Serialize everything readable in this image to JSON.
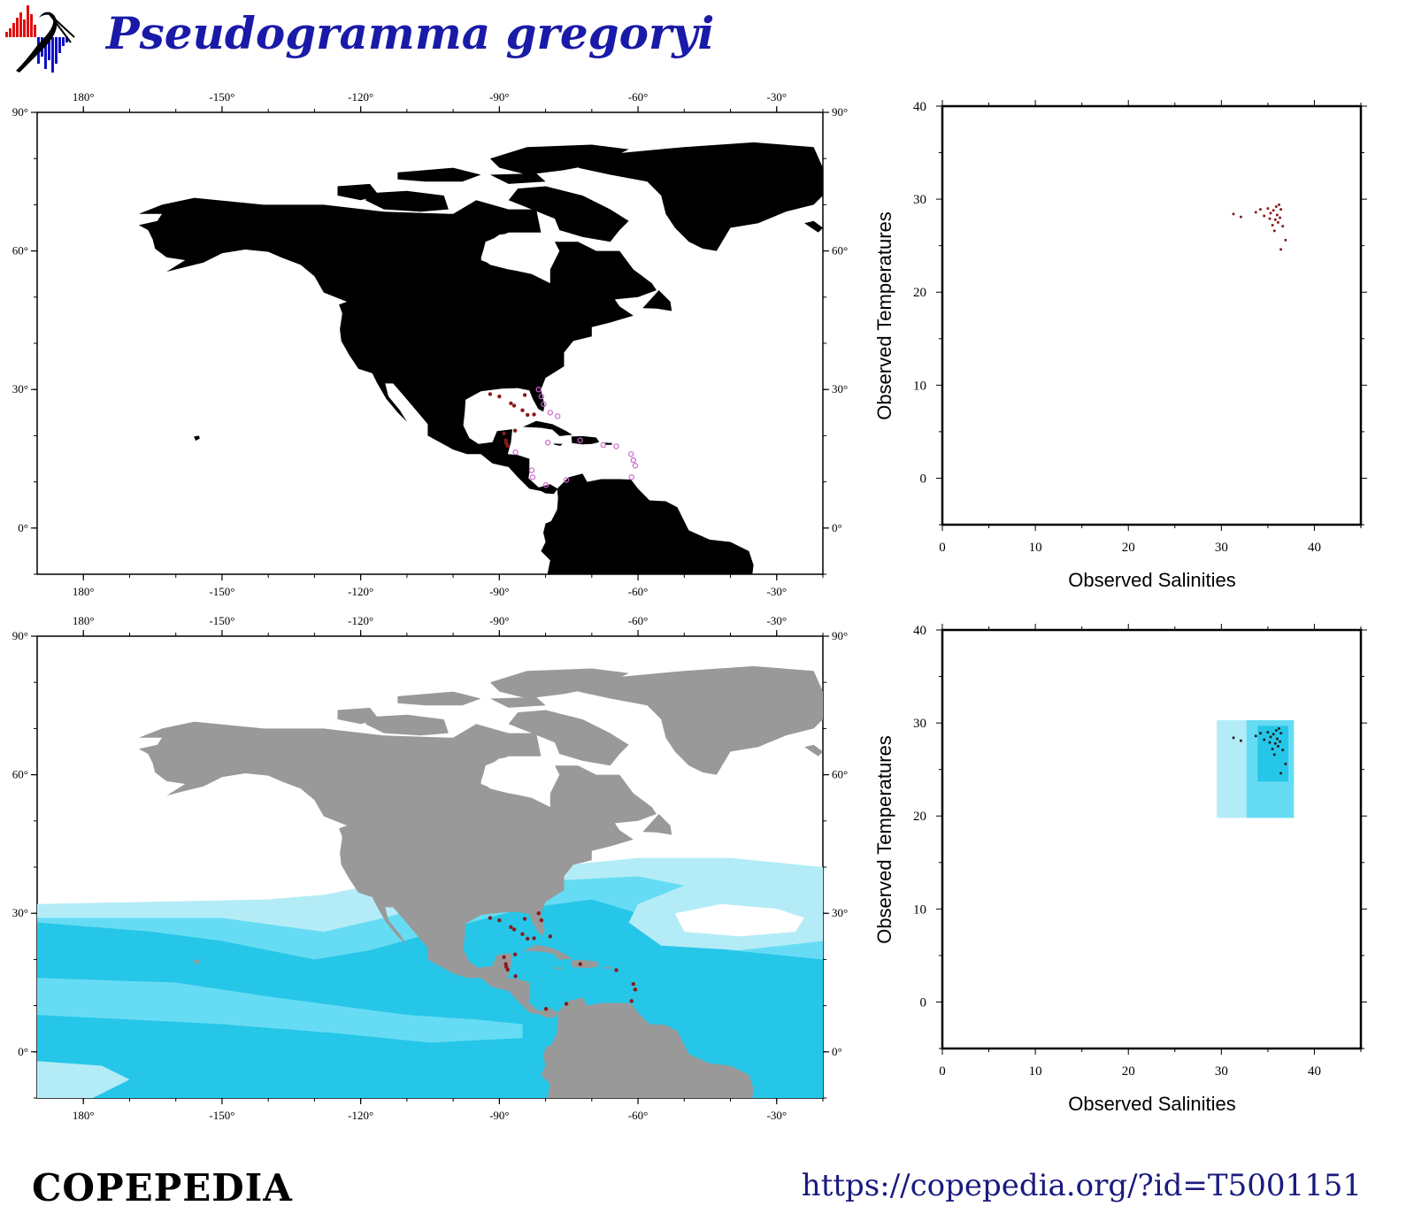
{
  "header": {
    "title": "Pseudogramma gregoryi",
    "logo_icon": "copepedia-logo-icon"
  },
  "footer": {
    "brand": "COPEPEDIA",
    "url": "https://copepedia.org/?id=T5001151"
  },
  "colors": {
    "land_black": "#000000",
    "land_gray": "#999999",
    "ocean_light": "#b3ecf7",
    "ocean_mid": "#66dcf4",
    "ocean_dark": "#26c6e8",
    "record_dark": "#8b1a1a",
    "record_open": "#cc66cc",
    "title_blue": "#1a1aa8"
  },
  "chart_data": [
    {
      "type": "map",
      "panel": "occurrence-map",
      "x_ticks": [
        "180°",
        "-150°",
        "-120°",
        "-90°",
        "-60°",
        "-30°"
      ],
      "y_ticks": [
        "90°",
        "60°",
        "30°",
        "0°"
      ],
      "x_tick_values": [
        180,
        -150,
        -120,
        -90,
        -60,
        -30
      ],
      "y_tick_values": [
        90,
        60,
        30,
        0
      ],
      "xlim": [
        -190,
        -20
      ],
      "ylim": [
        -10,
        90
      ],
      "land_color": "black",
      "records_filled": [
        [
          -89.0,
          20.5
        ],
        [
          -88.6,
          19.0
        ],
        [
          -88.2,
          17.8
        ],
        [
          -88.5,
          18.4
        ],
        [
          -86.6,
          21.1
        ],
        [
          -87.5,
          27.0
        ],
        [
          -86.8,
          26.5
        ],
        [
          -84.5,
          28.8
        ],
        [
          -92.0,
          29.0
        ],
        [
          -90.0,
          28.5
        ],
        [
          -85.0,
          25.5
        ],
        [
          -83.9,
          24.5
        ],
        [
          -82.5,
          24.6
        ]
      ],
      "records_open": [
        [
          -81.5,
          30.0
        ],
        [
          -80.9,
          28.5
        ],
        [
          -80.4,
          26.8
        ],
        [
          -79.0,
          25.0
        ],
        [
          -77.4,
          24.2
        ],
        [
          -79.5,
          18.5
        ],
        [
          -72.5,
          19.0
        ],
        [
          -67.5,
          18.0
        ],
        [
          -64.7,
          17.7
        ],
        [
          -61.5,
          16.0
        ],
        [
          -61.0,
          14.7
        ],
        [
          -60.6,
          13.5
        ],
        [
          -61.4,
          11.0
        ],
        [
          -75.5,
          10.4
        ],
        [
          -79.9,
          9.3
        ],
        [
          -82.8,
          11.0
        ],
        [
          -83.0,
          12.5
        ],
        [
          -86.5,
          16.4
        ]
      ]
    },
    {
      "type": "scatter",
      "panel": "ts-diagram",
      "xlabel": "Observed Salinities",
      "ylabel": "Observed Temperatures",
      "x_ticks": [
        "0",
        "10",
        "20",
        "30",
        "40"
      ],
      "y_ticks": [
        "0",
        "10",
        "20",
        "30",
        "40"
      ],
      "x_tick_values": [
        0,
        10,
        20,
        30,
        40
      ],
      "y_tick_values": [
        0,
        10,
        20,
        30,
        40
      ],
      "xlim": [
        0,
        45
      ],
      "ylim": [
        -5,
        40
      ],
      "points": [
        [
          31.3,
          28.4
        ],
        [
          32.1,
          28.1
        ],
        [
          33.7,
          28.6
        ],
        [
          34.2,
          28.9
        ],
        [
          34.6,
          28.2
        ],
        [
          35.0,
          29.0
        ],
        [
          35.3,
          28.5
        ],
        [
          35.6,
          28.8
        ],
        [
          35.9,
          29.2
        ],
        [
          36.2,
          29.4
        ],
        [
          36.4,
          28.9
        ],
        [
          35.8,
          27.8
        ],
        [
          36.1,
          27.5
        ],
        [
          36.3,
          28.0
        ],
        [
          35.5,
          27.2
        ],
        [
          35.7,
          26.6
        ],
        [
          36.6,
          27.1
        ],
        [
          36.9,
          25.6
        ],
        [
          36.4,
          24.6
        ],
        [
          35.2,
          27.9
        ],
        [
          36.0,
          28.3
        ]
      ]
    },
    {
      "type": "map",
      "panel": "habitat-map",
      "x_ticks": [
        "180°",
        "-150°",
        "-120°",
        "-90°",
        "-60°",
        "-30°"
      ],
      "y_ticks": [
        "90°",
        "60°",
        "30°",
        "0°"
      ],
      "x_tick_values": [
        180,
        -150,
        -120,
        -90,
        -60,
        -30
      ],
      "y_tick_values": [
        90,
        60,
        30,
        0
      ],
      "xlim": [
        -190,
        -20
      ],
      "ylim": [
        -10,
        90
      ],
      "land_color": "gray",
      "records": [
        [
          -89.0,
          20.5
        ],
        [
          -88.6,
          19.0
        ],
        [
          -88.2,
          17.8
        ],
        [
          -88.5,
          18.4
        ],
        [
          -86.6,
          21.1
        ],
        [
          -87.5,
          27.0
        ],
        [
          -86.8,
          26.5
        ],
        [
          -84.5,
          28.8
        ],
        [
          -92.0,
          29.0
        ],
        [
          -90.0,
          28.5
        ],
        [
          -85.0,
          25.5
        ],
        [
          -83.9,
          24.5
        ],
        [
          -82.5,
          24.6
        ],
        [
          -81.5,
          30.0
        ],
        [
          -80.9,
          28.5
        ],
        [
          -79.0,
          25.0
        ],
        [
          -72.5,
          19.0
        ],
        [
          -64.7,
          17.7
        ],
        [
          -61.0,
          14.7
        ],
        [
          -60.6,
          13.5
        ],
        [
          -61.4,
          11.0
        ],
        [
          -75.5,
          10.4
        ],
        [
          -79.9,
          9.3
        ],
        [
          -86.5,
          16.4
        ]
      ]
    },
    {
      "type": "scatter",
      "panel": "ts-habitat",
      "xlabel": "Observed Salinities",
      "ylabel": "Observed Temperatures",
      "x_ticks": [
        "0",
        "10",
        "20",
        "30",
        "40"
      ],
      "y_ticks": [
        "0",
        "10",
        "20",
        "30",
        "40"
      ],
      "x_tick_values": [
        0,
        10,
        20,
        30,
        40
      ],
      "y_tick_values": [
        0,
        10,
        20,
        30,
        40
      ],
      "xlim": [
        0,
        45
      ],
      "ylim": [
        -5,
        40
      ],
      "boxes": [
        {
          "shade": "light",
          "smin": 29.5,
          "smax": 37.8,
          "tmin": 19.8,
          "tmax": 30.3
        },
        {
          "shade": "mid",
          "smin": 32.7,
          "smax": 37.8,
          "tmin": 19.8,
          "tmax": 30.3
        },
        {
          "shade": "dark",
          "smin": 33.9,
          "smax": 37.2,
          "tmin": 23.7,
          "tmax": 29.7
        }
      ],
      "points": [
        [
          31.3,
          28.4
        ],
        [
          32.1,
          28.1
        ],
        [
          33.7,
          28.6
        ],
        [
          34.2,
          28.9
        ],
        [
          34.6,
          28.2
        ],
        [
          35.0,
          29.0
        ],
        [
          35.3,
          28.5
        ],
        [
          35.6,
          28.8
        ],
        [
          35.9,
          29.2
        ],
        [
          36.2,
          29.4
        ],
        [
          36.4,
          28.9
        ],
        [
          35.8,
          27.8
        ],
        [
          36.1,
          27.5
        ],
        [
          36.3,
          28.0
        ],
        [
          35.5,
          27.2
        ],
        [
          35.7,
          26.6
        ],
        [
          36.6,
          27.1
        ],
        [
          36.9,
          25.6
        ],
        [
          36.4,
          24.6
        ],
        [
          35.2,
          27.9
        ],
        [
          36.0,
          28.3
        ]
      ]
    }
  ]
}
